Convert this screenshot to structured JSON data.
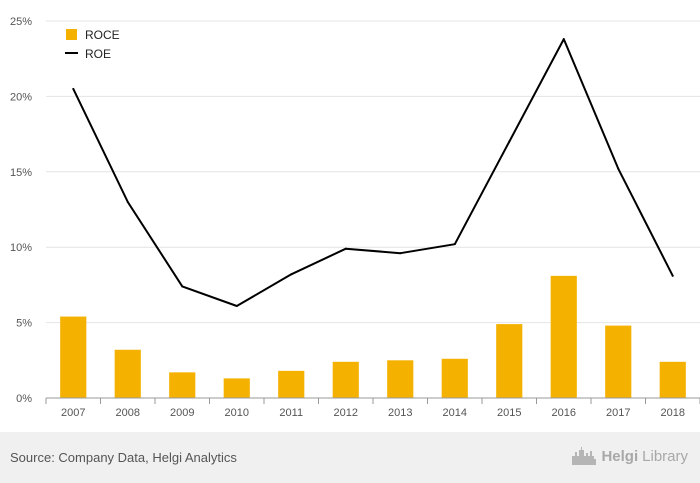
{
  "chart_data": {
    "type": "bar",
    "categories": [
      "2007",
      "2008",
      "2009",
      "2010",
      "2011",
      "2012",
      "2013",
      "2014",
      "2015",
      "2016",
      "2017",
      "2018"
    ],
    "series": [
      {
        "name": "ROCE",
        "type": "bar",
        "color": "#f5b100",
        "values": [
          5.4,
          3.2,
          1.7,
          1.3,
          1.8,
          2.4,
          2.5,
          2.6,
          4.9,
          8.1,
          4.8,
          2.4
        ]
      },
      {
        "name": "ROE",
        "type": "line",
        "color": "#000000",
        "values": [
          20.5,
          13.0,
          7.4,
          6.1,
          8.2,
          9.9,
          9.6,
          10.2,
          17.0,
          23.8,
          15.2,
          8.1
        ]
      }
    ],
    "yticks": [
      "0%",
      "5%",
      "10%",
      "15%",
      "20%",
      "25%"
    ],
    "ylim": [
      0,
      25
    ],
    "grid": true,
    "legend": "top-left"
  },
  "footer": {
    "source": "Source: Company Data, Helgi Analytics",
    "brand_part1": "Helgi",
    "brand_part2": "Library"
  }
}
